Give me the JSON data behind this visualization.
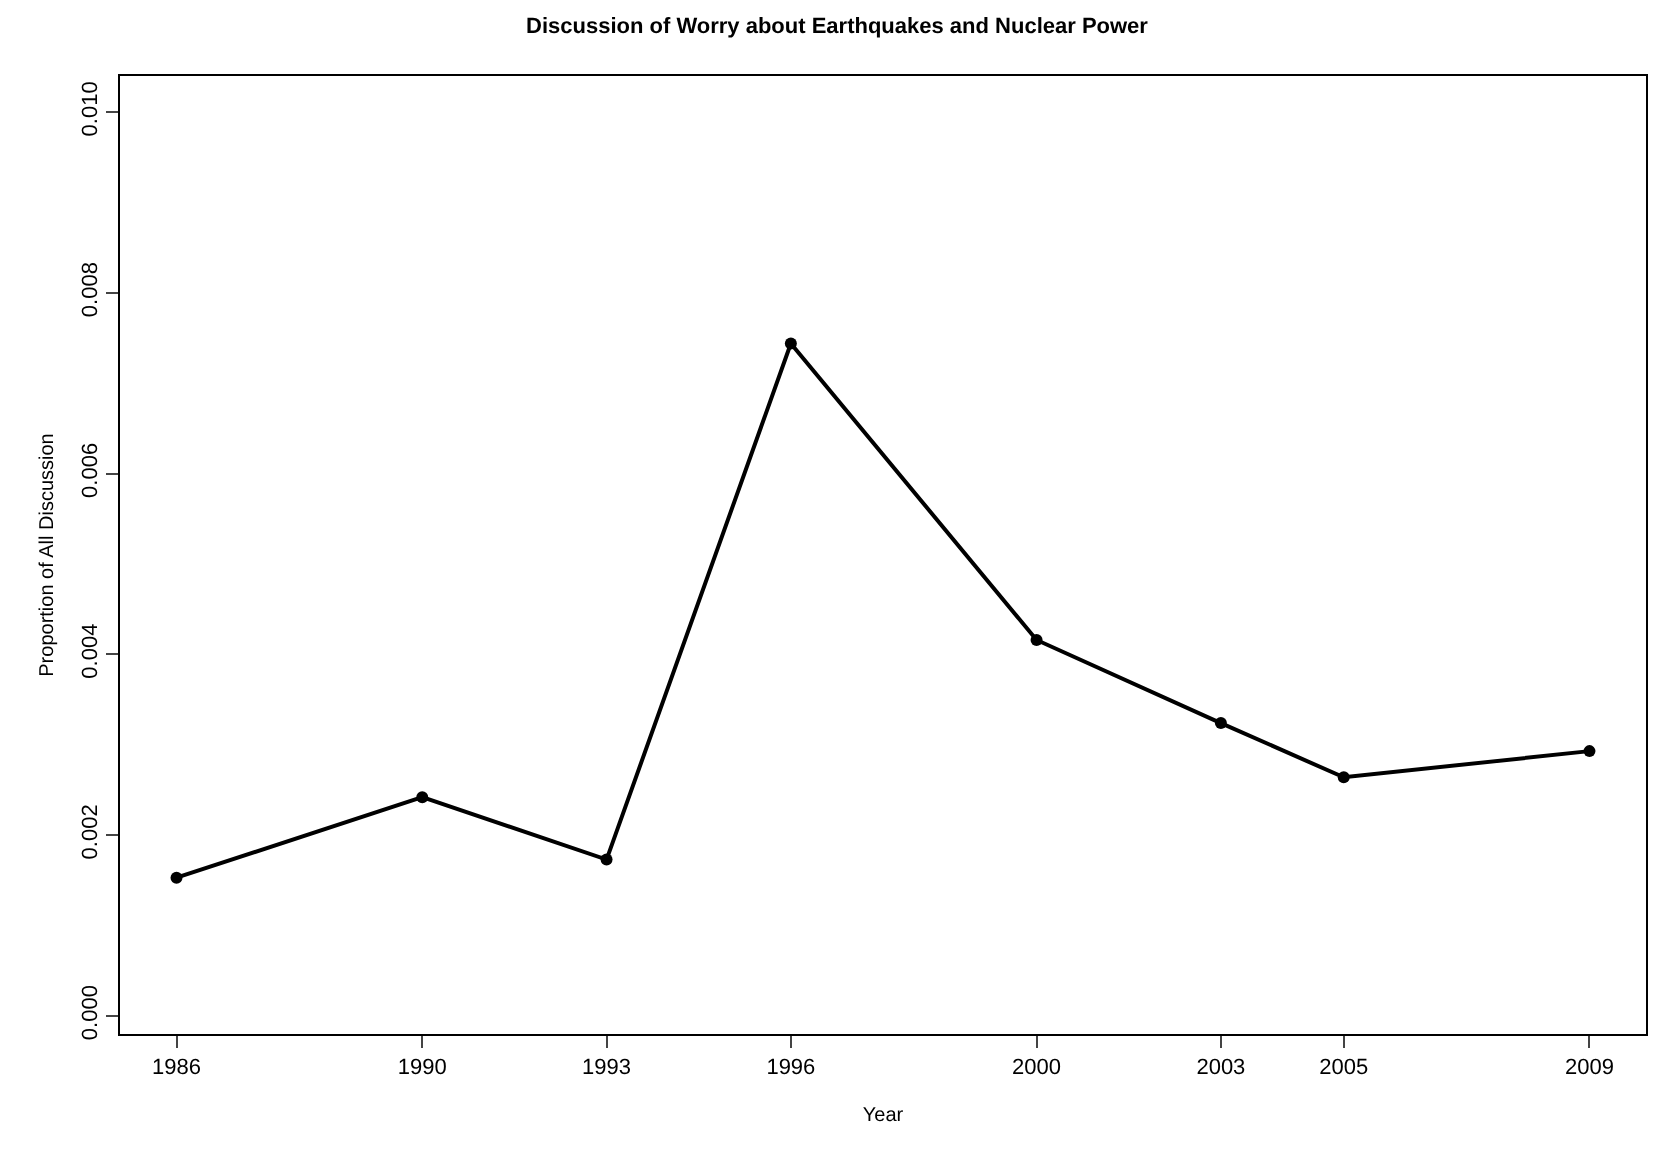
{
  "chart_data": {
    "type": "line",
    "title": "Discussion of Worry about Earthquakes and Nuclear Power",
    "xlabel": "Year",
    "ylabel": "Proportion of All Discussion",
    "x": [
      1986,
      1990,
      1993,
      1996,
      2000,
      2003,
      2005,
      2009
    ],
    "values": [
      0.00153,
      0.00242,
      0.00173,
      0.00744,
      0.00416,
      0.00324,
      0.00264,
      0.00293
    ],
    "color": "#000000",
    "marker": "circle",
    "line_style": "solid",
    "grid": false,
    "xlim": [
      1985.08,
      2009.92
    ],
    "xticks": [
      1986,
      1990,
      1993,
      1996,
      2000,
      2003,
      2005,
      2009
    ],
    "ylim": [
      -0.0002,
      0.0104
    ],
    "yticks": [
      {
        "value": 0,
        "label": "0.000"
      },
      {
        "value": 0.002,
        "label": "0.002"
      },
      {
        "value": 0.004,
        "label": "0.004"
      },
      {
        "value": 0.006,
        "label": "0.006"
      },
      {
        "value": 0.008,
        "label": "0.008"
      },
      {
        "value": 0.01,
        "label": "0.010"
      }
    ]
  }
}
